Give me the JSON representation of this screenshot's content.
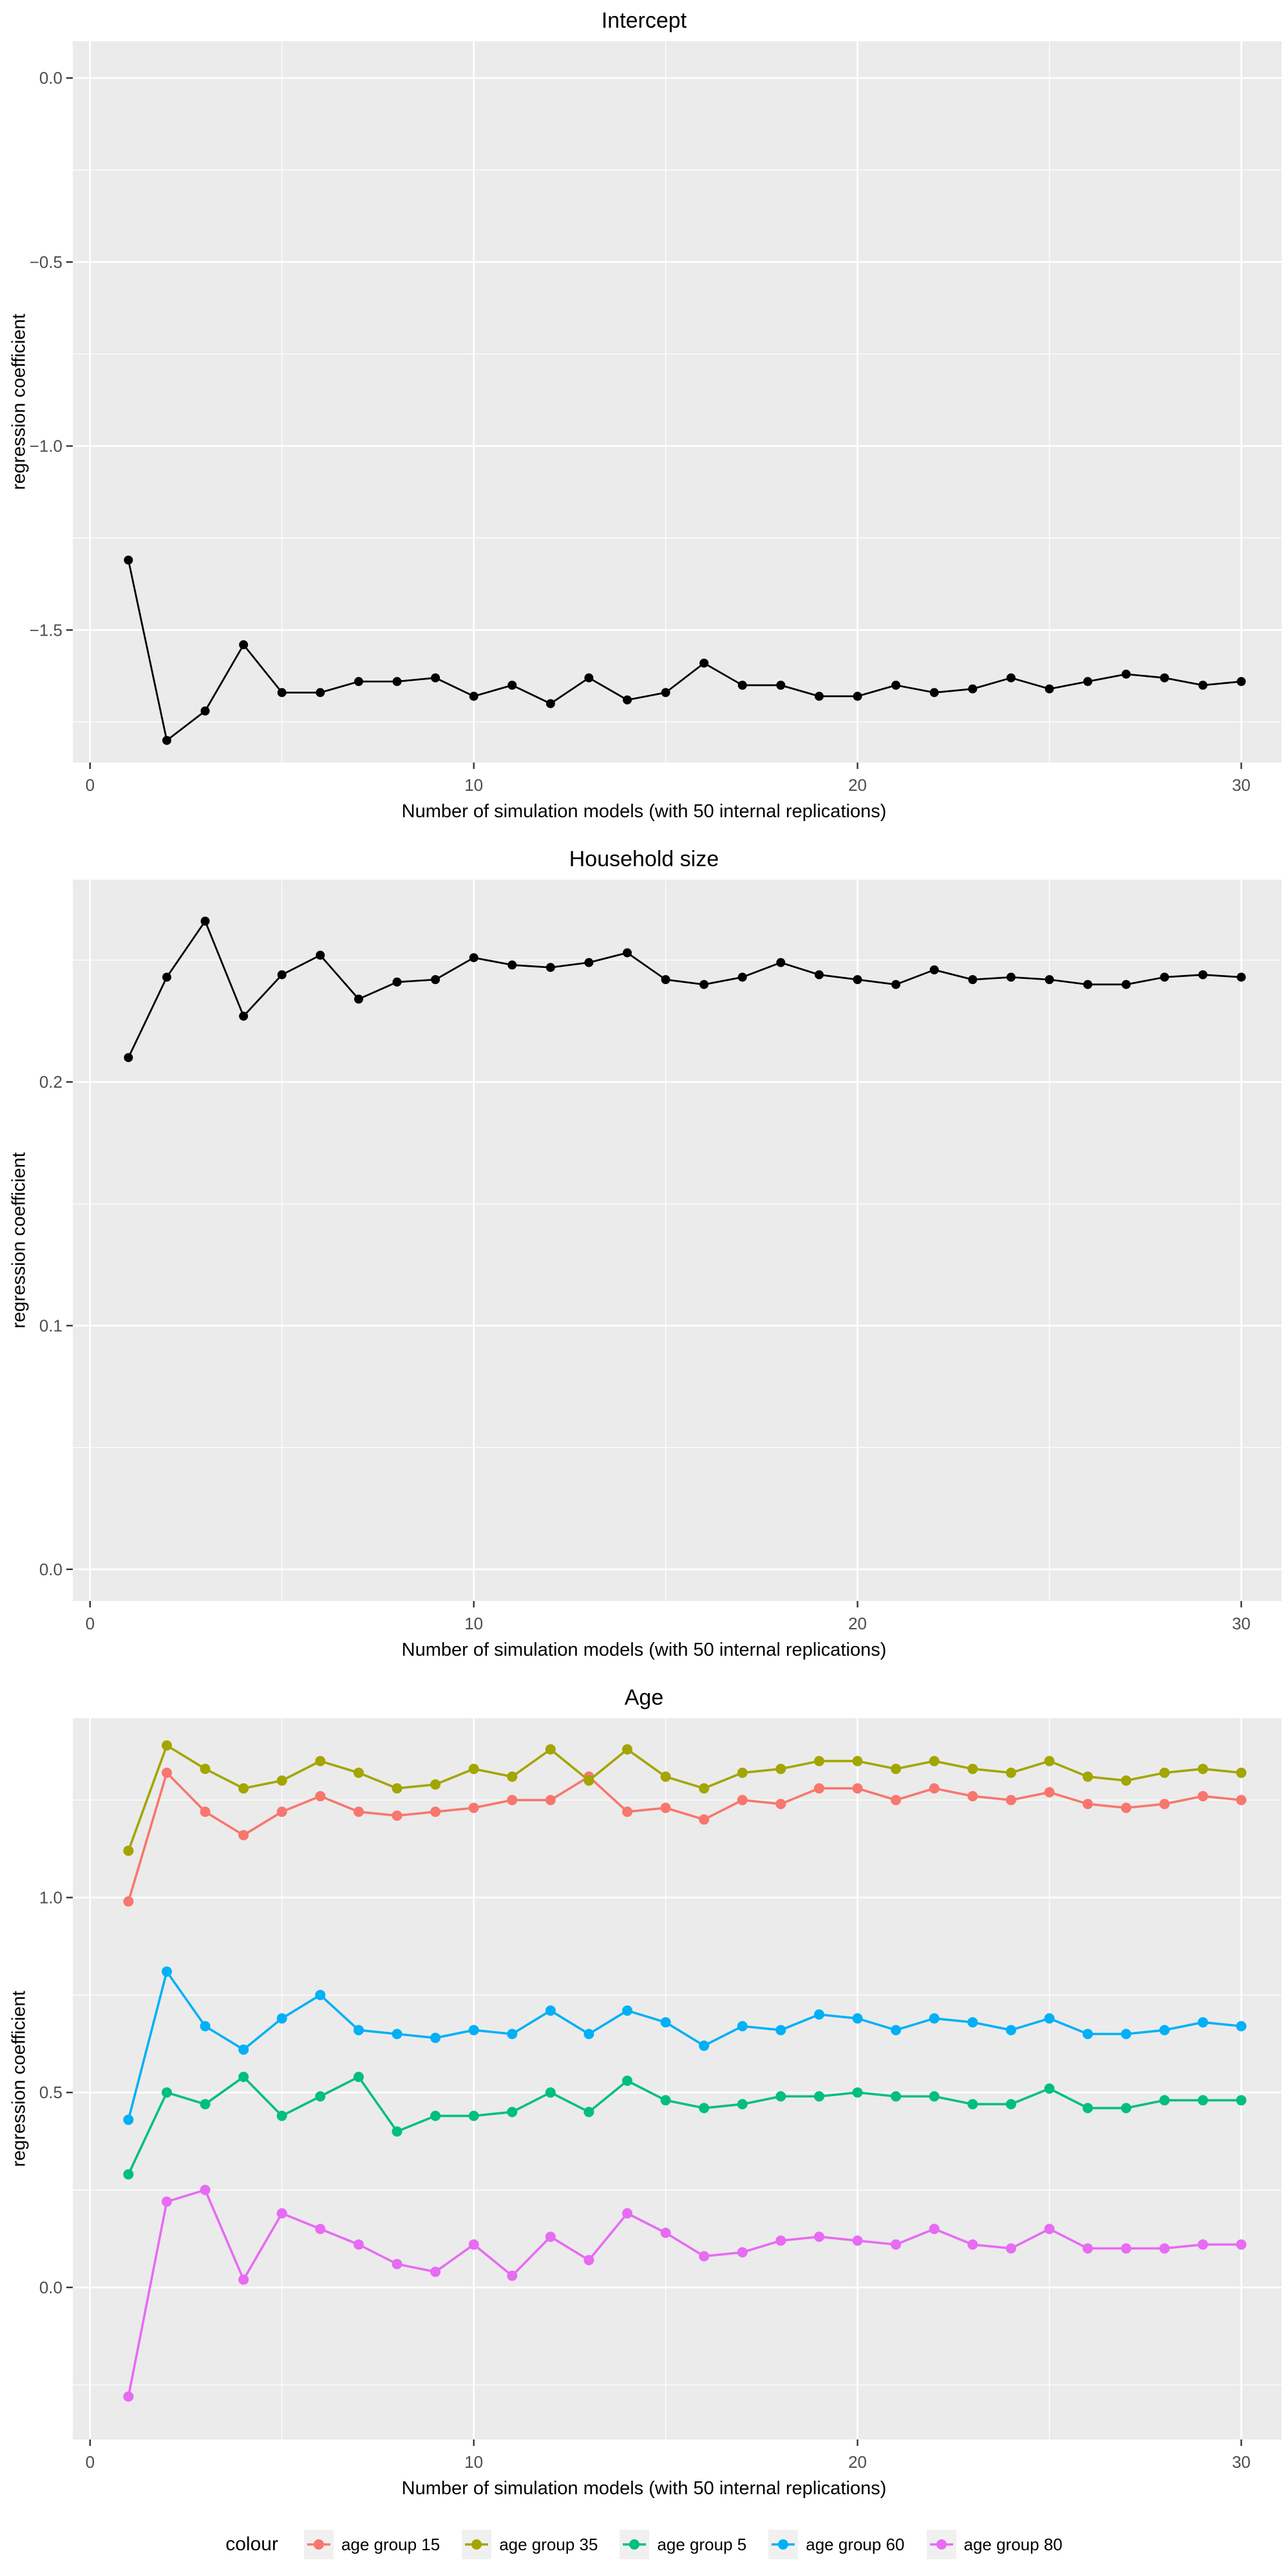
{
  "shared": {
    "x_axis_label": "Number of simulation models (with 50 internal replications)",
    "y_axis_label": "regression coefficient",
    "x_values": [
      1,
      2,
      3,
      4,
      5,
      6,
      7,
      8,
      9,
      10,
      11,
      12,
      13,
      14,
      15,
      16,
      17,
      18,
      19,
      20,
      21,
      22,
      23,
      24,
      25,
      26,
      27,
      28,
      29,
      30
    ],
    "x_ticks": [
      0,
      10,
      20,
      30
    ],
    "x_tick_labels": [
      "0",
      "10",
      "20",
      "30"
    ],
    "x_minor_ticks": [
      5,
      15,
      25
    ],
    "xlim": [
      -0.45,
      31.05
    ],
    "colors": {
      "background": "#FFFFFF",
      "panel": "#EBEBEB",
      "grid": "#FFFFFF",
      "tick_text": "#4D4D4D",
      "tick_mark": "#333333",
      "text": "#000000",
      "black_series": "#000000",
      "legend_key_bg": "#F0F0F0"
    }
  },
  "chart_data": [
    {
      "type": "line",
      "title": "Intercept",
      "xlabel": "Number of simulation models (with 50 internal replications)",
      "ylabel": "regression coefficient",
      "ylim": [
        -1.86,
        0.1
      ],
      "y_ticks": [
        0.0,
        -0.5,
        -1.0,
        -1.5
      ],
      "y_tick_labels": [
        "0.0",
        "−0.5",
        "−1.0",
        "−1.5"
      ],
      "y_minor_ticks": [
        -0.25,
        -0.75,
        -1.25,
        -1.75
      ],
      "grid": true,
      "legend_position": "none",
      "series": [
        {
          "name": "regression coefficient",
          "color": "#000000",
          "values": [
            -1.31,
            -1.8,
            -1.72,
            -1.54,
            -1.67,
            -1.67,
            -1.64,
            -1.64,
            -1.63,
            -1.68,
            -1.65,
            -1.7,
            -1.63,
            -1.69,
            -1.67,
            -1.59,
            -1.65,
            -1.65,
            -1.68,
            -1.68,
            -1.65,
            -1.67,
            -1.66,
            -1.63,
            -1.66,
            -1.64,
            -1.62,
            -1.63,
            -1.65,
            -1.64
          ]
        }
      ]
    },
    {
      "type": "line",
      "title": "Household size",
      "xlabel": "Number of simulation models (with 50 internal replications)",
      "ylabel": "regression coefficient",
      "ylim": [
        -0.013,
        0.283
      ],
      "y_ticks": [
        0.2,
        0.1,
        0.0
      ],
      "y_tick_labels": [
        "0.2",
        "0.1",
        "0.0"
      ],
      "y_minor_ticks": [
        0.25,
        0.15,
        0.05
      ],
      "grid": true,
      "legend_position": "none",
      "series": [
        {
          "name": "regression coefficient",
          "color": "#000000",
          "values": [
            0.21,
            0.243,
            0.266,
            0.227,
            0.244,
            0.252,
            0.234,
            0.241,
            0.242,
            0.251,
            0.248,
            0.247,
            0.249,
            0.253,
            0.242,
            0.24,
            0.243,
            0.249,
            0.244,
            0.242,
            0.24,
            0.246,
            0.242,
            0.243,
            0.242,
            0.24,
            0.24,
            0.243,
            0.244,
            0.243
          ]
        }
      ]
    },
    {
      "type": "line",
      "title": "Age",
      "xlabel": "Number of simulation models (with 50 internal replications)",
      "ylabel": "regression coefficient",
      "ylim": [
        -0.39,
        1.46
      ],
      "y_ticks": [
        1.0,
        0.5,
        0.0
      ],
      "y_tick_labels": [
        "1.0",
        "0.5",
        "0.0"
      ],
      "y_minor_ticks": [
        1.25,
        0.75,
        0.25,
        -0.25
      ],
      "grid": true,
      "legend_position": "bottom",
      "series": [
        {
          "name": "age group 15",
          "color": "#F8766D",
          "values": [
            0.99,
            1.32,
            1.22,
            1.16,
            1.22,
            1.26,
            1.22,
            1.21,
            1.22,
            1.23,
            1.25,
            1.25,
            1.31,
            1.22,
            1.23,
            1.2,
            1.25,
            1.24,
            1.28,
            1.28,
            1.25,
            1.28,
            1.26,
            1.25,
            1.27,
            1.24,
            1.23,
            1.24,
            1.26,
            1.25
          ]
        },
        {
          "name": "age group 35",
          "color": "#A3A500",
          "values": [
            1.12,
            1.39,
            1.33,
            1.28,
            1.3,
            1.35,
            1.32,
            1.28,
            1.29,
            1.33,
            1.31,
            1.38,
            1.3,
            1.38,
            1.31,
            1.28,
            1.32,
            1.33,
            1.35,
            1.35,
            1.33,
            1.35,
            1.33,
            1.32,
            1.35,
            1.31,
            1.3,
            1.32,
            1.33,
            1.32
          ]
        },
        {
          "name": "age group 5",
          "color": "#00BF7D",
          "values": [
            0.29,
            0.5,
            0.47,
            0.54,
            0.44,
            0.49,
            0.54,
            0.4,
            0.44,
            0.44,
            0.45,
            0.5,
            0.45,
            0.53,
            0.48,
            0.46,
            0.47,
            0.49,
            0.49,
            0.5,
            0.49,
            0.49,
            0.47,
            0.47,
            0.51,
            0.46,
            0.46,
            0.48,
            0.48,
            0.48
          ]
        },
        {
          "name": "age group 60",
          "color": "#00B0F6",
          "values": [
            0.43,
            0.81,
            0.67,
            0.61,
            0.69,
            0.75,
            0.66,
            0.65,
            0.64,
            0.66,
            0.65,
            0.71,
            0.65,
            0.71,
            0.68,
            0.62,
            0.67,
            0.66,
            0.7,
            0.69,
            0.66,
            0.69,
            0.68,
            0.66,
            0.69,
            0.65,
            0.65,
            0.66,
            0.68,
            0.67
          ]
        },
        {
          "name": "age group 80",
          "color": "#E76BF3",
          "values": [
            -0.28,
            0.22,
            0.25,
            0.02,
            0.19,
            0.15,
            0.11,
            0.06,
            0.04,
            0.11,
            0.03,
            0.13,
            0.07,
            0.19,
            0.14,
            0.08,
            0.09,
            0.12,
            0.13,
            0.12,
            0.11,
            0.15,
            0.11,
            0.1,
            0.15,
            0.1,
            0.1,
            0.1,
            0.11,
            0.11
          ]
        }
      ]
    }
  ],
  "legend": {
    "title": "colour",
    "items": [
      {
        "label": "age group 15",
        "color": "#F8766D"
      },
      {
        "label": "age group 35",
        "color": "#A3A500"
      },
      {
        "label": "age group 5",
        "color": "#00BF7D"
      },
      {
        "label": "age group 60",
        "color": "#00B0F6"
      },
      {
        "label": "age group 80",
        "color": "#E76BF3"
      }
    ]
  }
}
